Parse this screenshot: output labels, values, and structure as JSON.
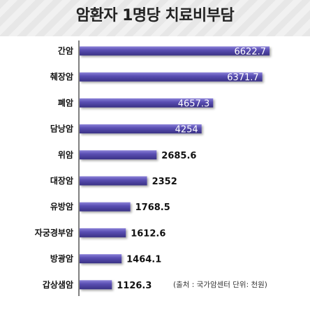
{
  "title": "암환자 1명당 치료비부담",
  "source_note": "(출처 : 국가암센터 단위: 천원)",
  "colors": {
    "bar": "#5a4fb3",
    "bar_top": "#8a80d8",
    "bar_dark": "#3a3185",
    "axis": "#555555",
    "label_text": "#111111",
    "inside_label_text": "#ffffff"
  },
  "chart_data": {
    "type": "bar",
    "orientation": "horizontal",
    "categories": [
      "간암",
      "췌장암",
      "폐암",
      "담낭암",
      "위암",
      "대장암",
      "유방암",
      "자궁경부암",
      "방광암",
      "갑상샘암"
    ],
    "values": [
      6622.7,
      6371.7,
      4657.3,
      4254,
      2685.6,
      2352,
      1768.5,
      1612.6,
      1464.1,
      1126.3
    ],
    "value_labels": [
      "6622.7",
      "6371.7",
      "4657.3",
      "4254",
      "2685.6",
      "2352",
      "1768.5",
      "1612.6",
      "1464.1",
      "1126.3"
    ],
    "title": "암환자 1명당 치료비부담",
    "xlim": [
      0,
      7000
    ],
    "grid": false
  }
}
